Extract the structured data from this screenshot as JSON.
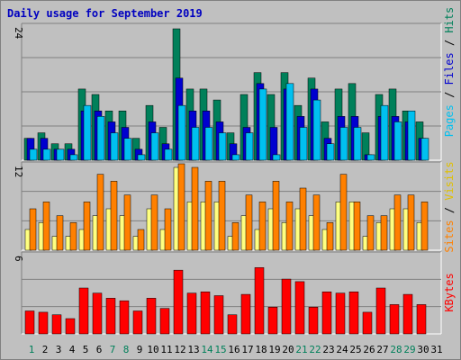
{
  "chart_data": {
    "type": "bar",
    "title": "Daily usage for September 2019",
    "categories": [
      "1",
      "2",
      "3",
      "4",
      "5",
      "6",
      "7",
      "8",
      "9",
      "10",
      "11",
      "12",
      "13",
      "14",
      "15",
      "16",
      "17",
      "18",
      "19",
      "20",
      "21",
      "22",
      "23",
      "24",
      "25",
      "26",
      "27",
      "28",
      "29",
      "30",
      "31"
    ],
    "weekend_days": [
      "1",
      "7",
      "8",
      "14",
      "15",
      "21",
      "22",
      "28",
      "29"
    ],
    "panels": [
      {
        "id": "top",
        "ymax_label": "24",
        "ymax": 24,
        "series": [
          {
            "name": "Hits",
            "color": "#00805a",
            "values": [
              4,
              5,
              3,
              3,
              13,
              12,
              9,
              9,
              4,
              10,
              6,
              24,
              13,
              13,
              11,
              5,
              12,
              16,
              12,
              16,
              10,
              15,
              7,
              13,
              14,
              5,
              12,
              13,
              9,
              7,
              0
            ]
          },
          {
            "name": "Files",
            "color": "#0000d0",
            "values": [
              4,
              4,
              2,
              2,
              9,
              9,
              7,
              6,
              2,
              7,
              3,
              15,
              9,
              9,
              7,
              3,
              6,
              14,
              6,
              13,
              8,
              13,
              4,
              8,
              8,
              1,
              8,
              8,
              7,
              4,
              0
            ]
          },
          {
            "name": "Pages",
            "color": "#00c0f0",
            "values": [
              2,
              2,
              2,
              1,
              10,
              8,
              5,
              4,
              1,
              5,
              2,
              10,
              6,
              6,
              5,
              1,
              5,
              13,
              1,
              14,
              6,
              11,
              3,
              6,
              6,
              1,
              10,
              7,
              9,
              4,
              0
            ]
          }
        ]
      },
      {
        "id": "middle",
        "ymax_label": "12",
        "ymax": 12,
        "series": [
          {
            "name": "Visits",
            "color": "#ffff80",
            "values": [
              3,
              4,
              2,
              2,
              3,
              5,
              6,
              5,
              2,
              6,
              3,
              12,
              7,
              7,
              7,
              2,
              5,
              3,
              6,
              4,
              6,
              5,
              3,
              7,
              7,
              2,
              4,
              6,
              6,
              4,
              0
            ]
          },
          {
            "name": "Sites",
            "color": "#ff8000",
            "values": [
              6,
              7,
              5,
              4,
              7,
              11,
              10,
              8,
              3,
              8,
              6,
              15,
              12,
              10,
              10,
              4,
              8,
              7,
              10,
              7,
              9,
              8,
              4,
              11,
              7,
              5,
              5,
              8,
              8,
              7,
              0
            ]
          }
        ]
      },
      {
        "id": "bottom",
        "ymax_label": "6",
        "ymax": 6,
        "series": [
          {
            "name": "KBytes",
            "color": "#ff0000",
            "values": [
              1.8,
              1.7,
              1.5,
              1.2,
              3.6,
              3.2,
              2.8,
              2.6,
              1.8,
              2.8,
              2.0,
              5.0,
              3.2,
              3.3,
              3.0,
              1.5,
              3.1,
              5.2,
              2.1,
              4.3,
              4.1,
              2.1,
              3.3,
              3.2,
              3.3,
              1.7,
              3.6,
              2.3,
              3.1,
              2.3,
              0
            ]
          }
        ]
      }
    ],
    "right_labels": {
      "top": [
        {
          "text": "Pages",
          "color": "#00c0f0"
        },
        {
          "text": " / ",
          "color": "#000000"
        },
        {
          "text": "Files",
          "color": "#0000d0"
        },
        {
          "text": " / ",
          "color": "#000000"
        },
        {
          "text": "Hits",
          "color": "#00805a"
        }
      ],
      "middle": [
        {
          "text": "Sites",
          "color": "#ff8000"
        },
        {
          "text": " / ",
          "color": "#000000"
        },
        {
          "text": "Visits",
          "color": "#e0c000"
        }
      ],
      "bottom": [
        {
          "text": "KBytes",
          "color": "#ff0000"
        }
      ]
    },
    "colors": {
      "weekday_label": "#000000",
      "weekend_label": "#00805a",
      "title": "#0000c0",
      "panel_bg": "#c0c0c0",
      "grid": "#808080"
    }
  }
}
